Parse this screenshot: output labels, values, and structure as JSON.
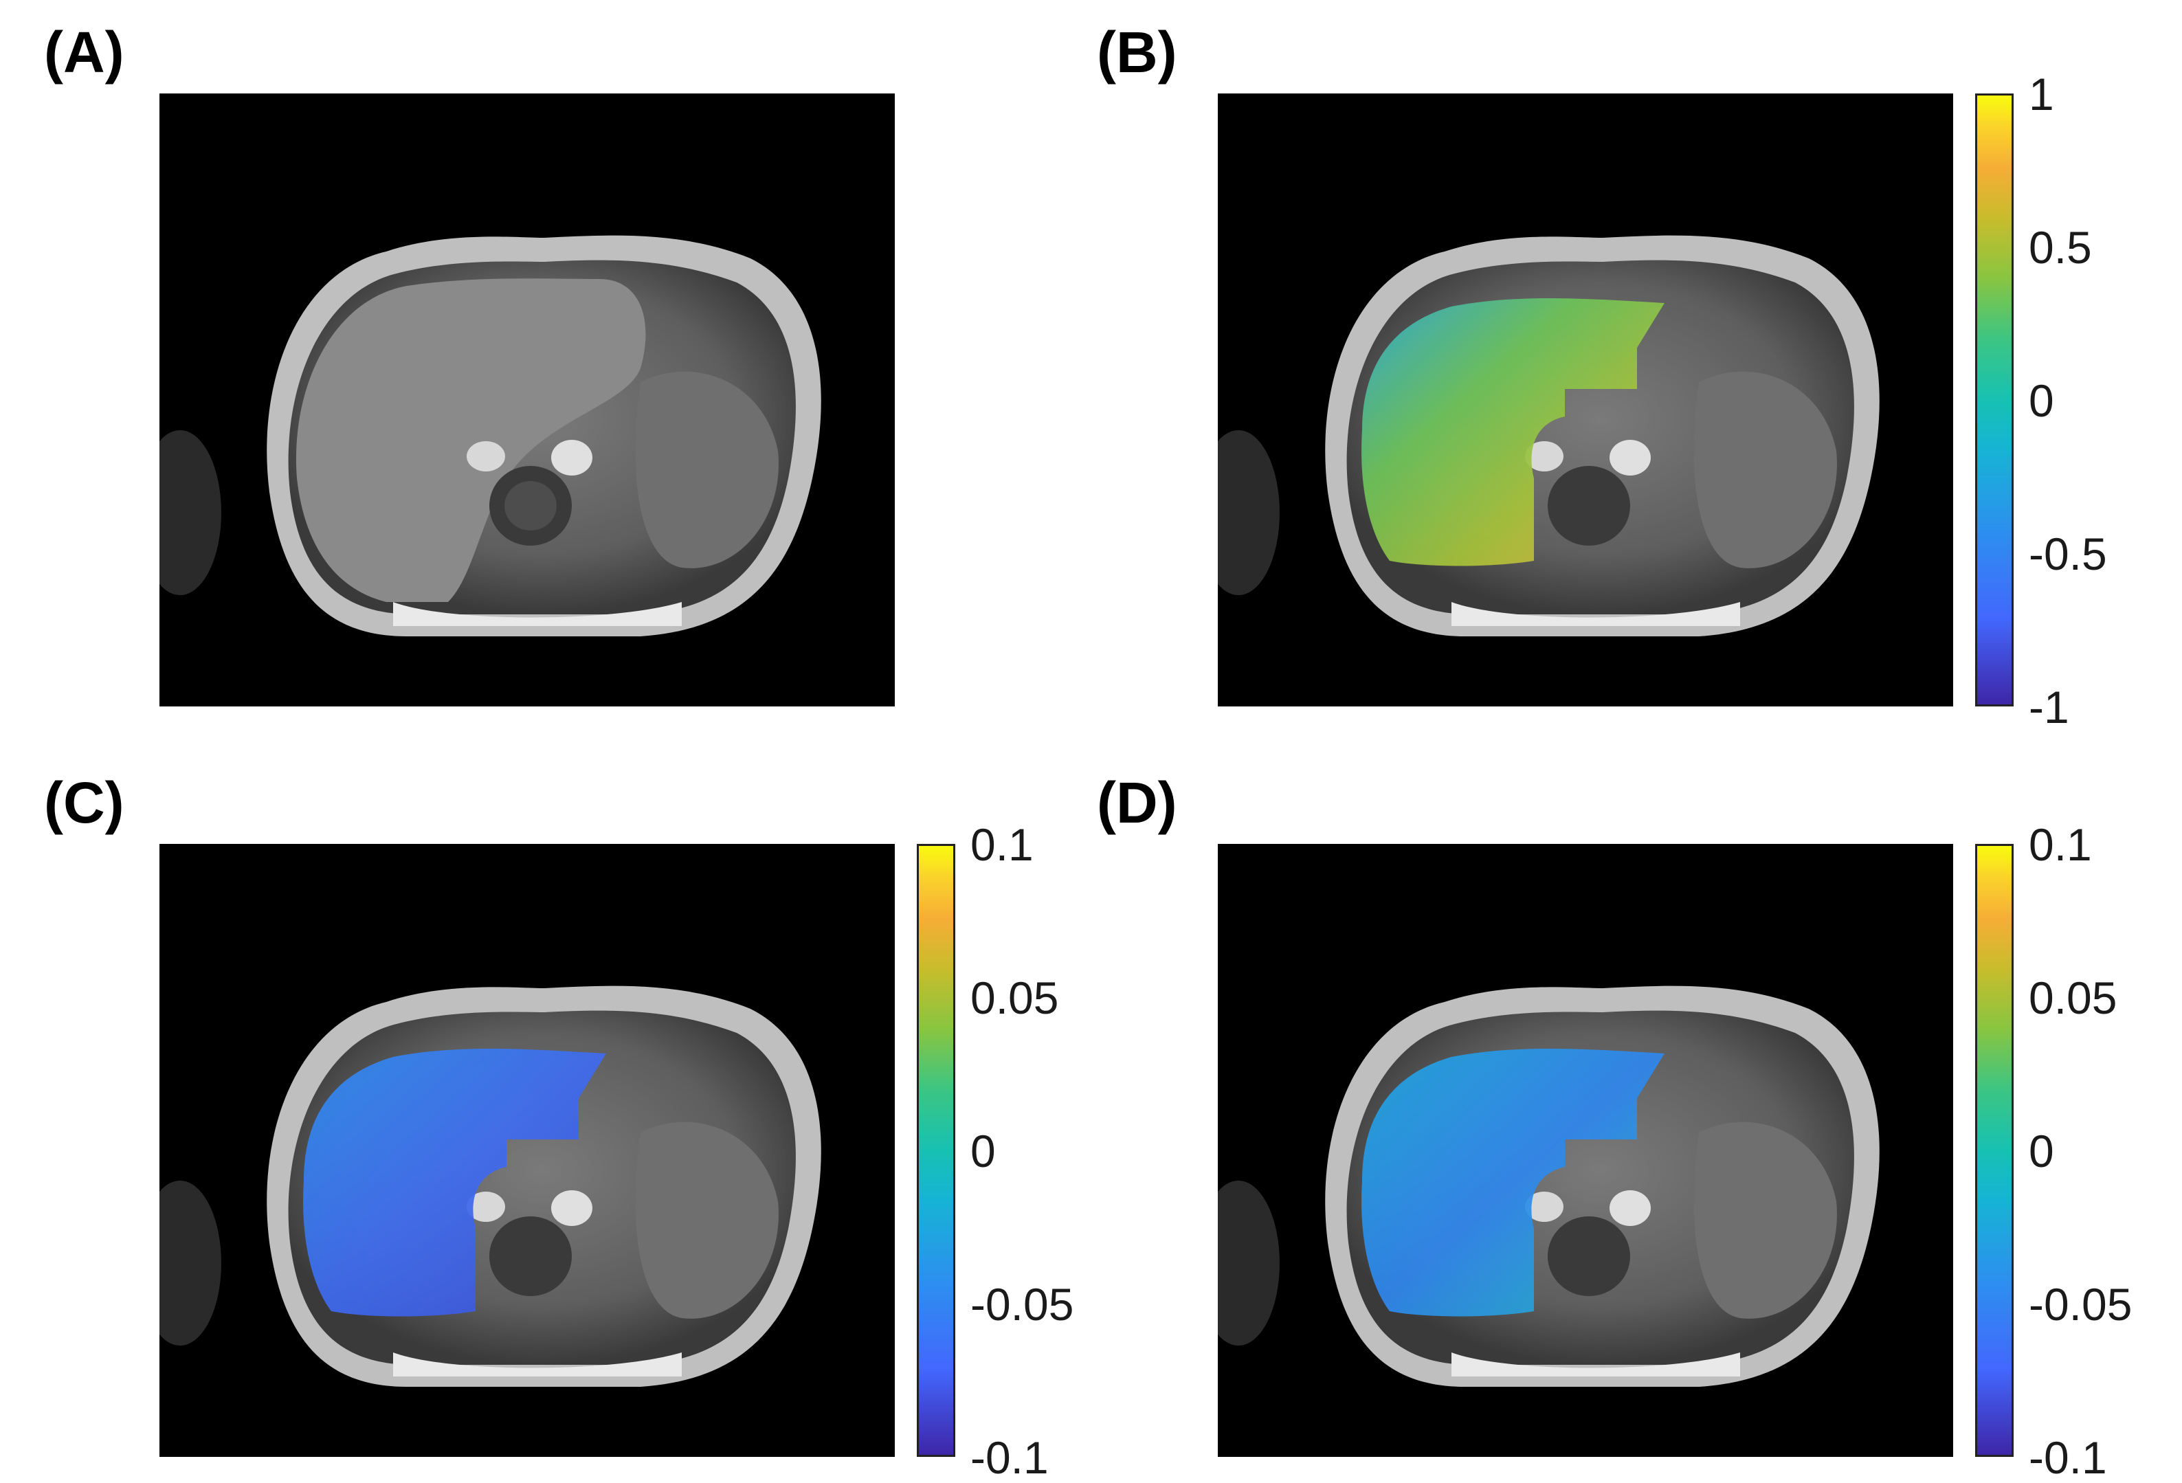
{
  "panels": [
    {
      "label": "(A)",
      "overlay": "none"
    },
    {
      "label": "(B)",
      "overlay": "warm-green-liver",
      "colorbar": {
        "ticks": [
          "1",
          "0.5",
          "0",
          "-0.5",
          "-1"
        ]
      }
    },
    {
      "label": "(C)",
      "overlay": "blue-liver",
      "colorbar": {
        "ticks": [
          "0.1",
          "0.05",
          "0",
          "-0.05",
          "-0.1"
        ]
      }
    },
    {
      "label": "(D)",
      "overlay": "blue-cyan-liver",
      "colorbar": {
        "ticks": [
          "0.1",
          "0.05",
          "0",
          "-0.05",
          "-0.1"
        ]
      }
    }
  ],
  "colormap": "parula",
  "colors": {
    "background": "#000000",
    "low": "#3e26a8",
    "mid": "#17c1b2",
    "high": "#f9fb0e"
  }
}
